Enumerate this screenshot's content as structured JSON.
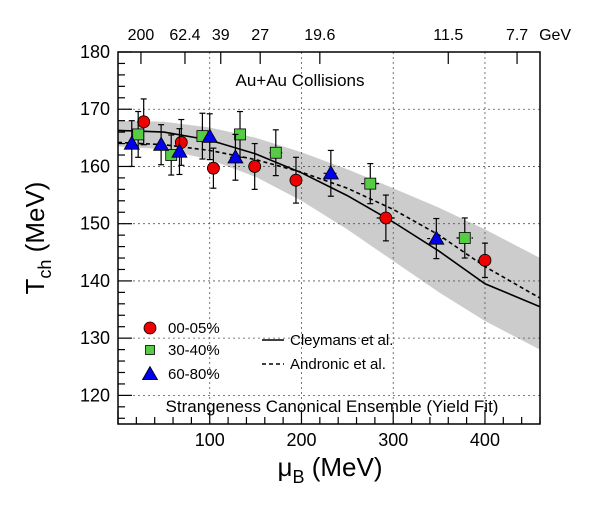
{
  "chart_data": {
    "type": "scatter",
    "title": "",
    "xlabel": "μ",
    "xlabel_sub": "B",
    "xlabel_unit": "(MeV)",
    "ylabel": "T",
    "ylabel_sub": "ch",
    "ylabel_unit": "(MeV)",
    "xlim": [
      0,
      460
    ],
    "ylim": [
      115,
      180
    ],
    "x_ticks": [
      100,
      200,
      300,
      400
    ],
    "y_ticks": [
      120,
      130,
      140,
      150,
      160,
      170,
      180
    ],
    "grid": true,
    "top_axis": {
      "labels": [
        "200",
        "62.4",
        "39",
        "27",
        "19.6",
        "11.5",
        "7.7"
      ],
      "mu_positions": [
        25,
        73,
        112,
        155,
        220,
        360,
        435
      ],
      "unit": "GeV"
    },
    "annotations": [
      "Au+Au Collisions",
      "Strangeness Canonical Ensemble (Yield Fit)"
    ],
    "legend_placement": "bottom-left",
    "series": [
      {
        "name": "00-05%",
        "marker": "circle",
        "color": "#ee0000",
        "points": [
          {
            "x": 28,
            "y": 167.8,
            "xerr": 3,
            "yerr": 4
          },
          {
            "x": 69,
            "y": 164.2,
            "xerr": 4,
            "yerr": 4
          },
          {
            "x": 104,
            "y": 159.7,
            "xerr": 5,
            "yerr": 3.5
          },
          {
            "x": 149,
            "y": 160.0,
            "xerr": 6,
            "yerr": 4
          },
          {
            "x": 194,
            "y": 157.6,
            "xerr": 7,
            "yerr": 4
          },
          {
            "x": 292,
            "y": 151.0,
            "xerr": 10,
            "yerr": 4
          },
          {
            "x": 400,
            "y": 143.6,
            "xerr": 8,
            "yerr": 3
          }
        ]
      },
      {
        "name": "30-40%",
        "marker": "square",
        "color": "#55cc44",
        "points": [
          {
            "x": 22,
            "y": 165.6,
            "xerr": 3,
            "yerr": 4
          },
          {
            "x": 58,
            "y": 162.0,
            "xerr": 4,
            "yerr": 3.5
          },
          {
            "x": 92,
            "y": 165.3,
            "xerr": 5,
            "yerr": 4
          },
          {
            "x": 133,
            "y": 165.6,
            "xerr": 6,
            "yerr": 4
          },
          {
            "x": 172,
            "y": 162.4,
            "xerr": 7,
            "yerr": 4
          },
          {
            "x": 275,
            "y": 157.0,
            "xerr": 10,
            "yerr": 3.5
          },
          {
            "x": 378,
            "y": 147.5,
            "xerr": 9,
            "yerr": 3.5
          }
        ]
      },
      {
        "name": "60-80%",
        "marker": "triangle",
        "color": "#0000ee",
        "points": [
          {
            "x": 15,
            "y": 164.0,
            "xerr": 3,
            "yerr": 4
          },
          {
            "x": 47,
            "y": 163.8,
            "xerr": 4,
            "yerr": 3.5
          },
          {
            "x": 67,
            "y": 162.6,
            "xerr": 4,
            "yerr": 4
          },
          {
            "x": 100,
            "y": 165.2,
            "xerr": 5,
            "yerr": 4
          },
          {
            "x": 128,
            "y": 161.6,
            "xerr": 6,
            "yerr": 4
          },
          {
            "x": 232,
            "y": 158.8,
            "xerr": 8,
            "yerr": 4
          },
          {
            "x": 347,
            "y": 147.4,
            "xerr": 10,
            "yerr": 3.5
          }
        ]
      }
    ],
    "curves": [
      {
        "name": "Cleymans et al.",
        "style": "solid",
        "x": [
          0,
          50,
          100,
          150,
          200,
          250,
          300,
          350,
          400,
          460
        ],
        "y": [
          166.3,
          166.0,
          164.6,
          162.2,
          158.9,
          154.9,
          150.3,
          145.2,
          139.5,
          135.5
        ]
      },
      {
        "name": "Andronic et al.",
        "style": "dashed",
        "x": [
          0,
          50,
          100,
          150,
          200,
          250,
          300,
          350,
          400,
          460
        ],
        "y": [
          164.2,
          163.8,
          162.8,
          161.2,
          159.0,
          156.2,
          152.5,
          148.0,
          142.5,
          137.0
        ]
      }
    ],
    "band": {
      "x": [
        0,
        50,
        100,
        150,
        200,
        250,
        300,
        350,
        400,
        460
      ],
      "y_low": [
        163.5,
        163.0,
        161.2,
        158.2,
        154.0,
        149.0,
        143.5,
        138.0,
        133.0,
        128.0
      ],
      "y_high": [
        168.0,
        167.8,
        166.8,
        165.0,
        162.5,
        159.5,
        156.2,
        152.8,
        149.0,
        144.0
      ],
      "color": "#cccccc"
    }
  }
}
